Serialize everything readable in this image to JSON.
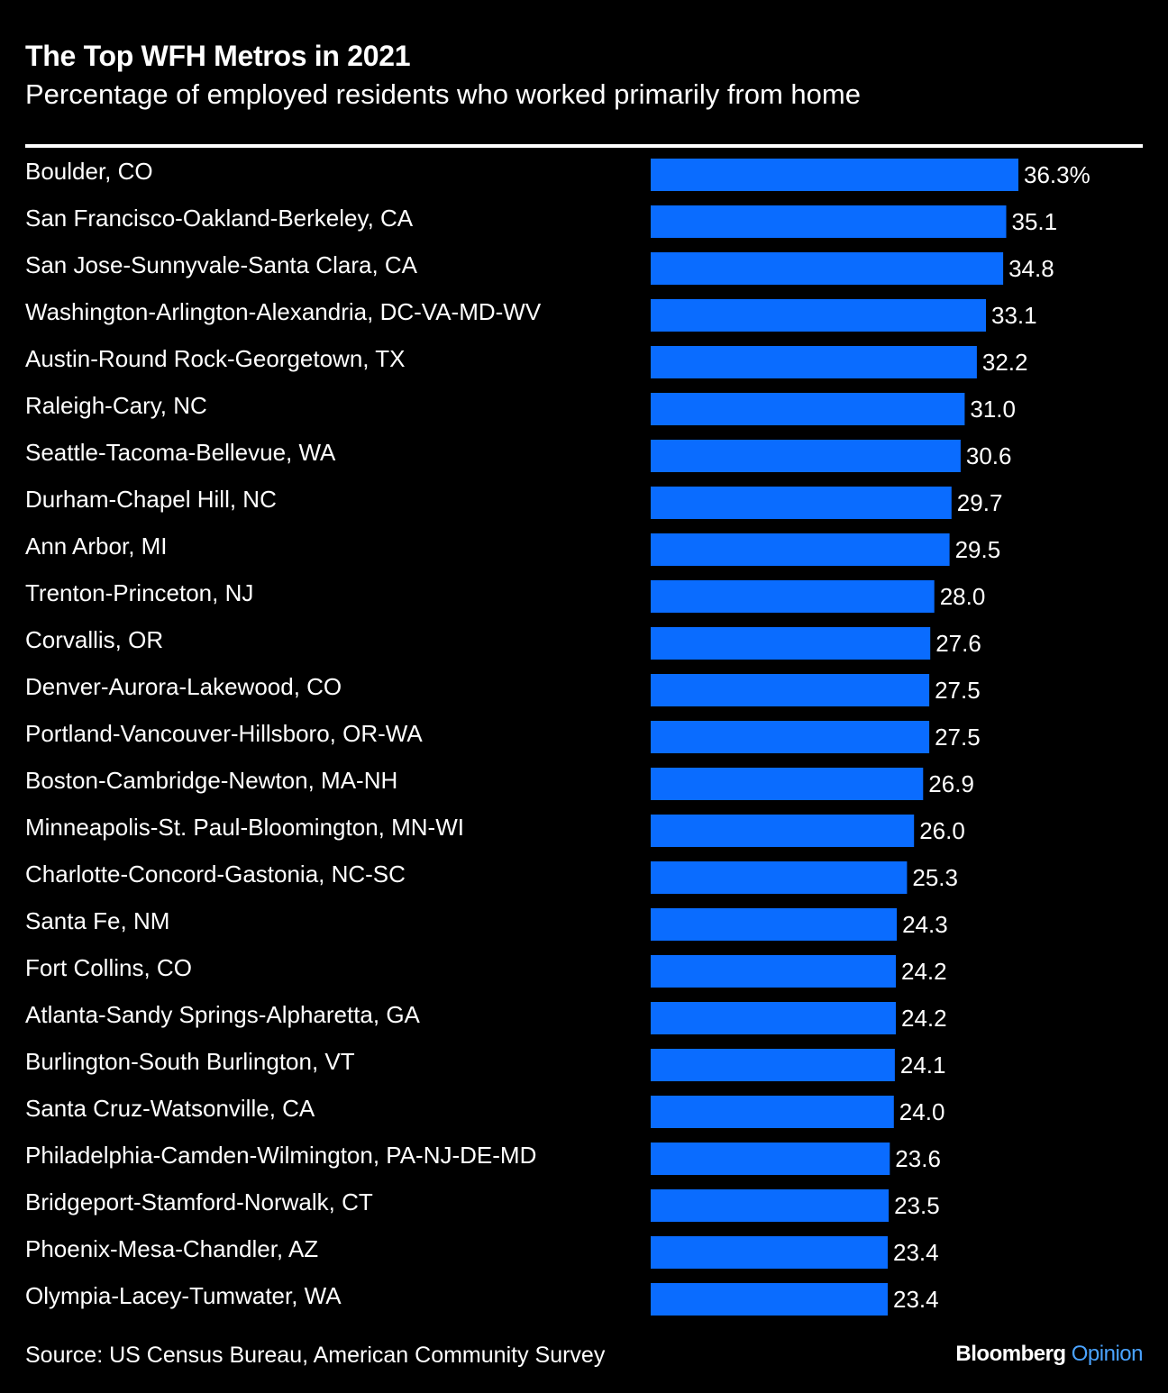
{
  "chart_data": {
    "type": "bar",
    "orientation": "horizontal",
    "title": "The Top WFH Metros in 2021",
    "subtitle": "Percentage of employed residents who worked primarily from home",
    "categories": [
      "Boulder, CO",
      "San Francisco-Oakland-Berkeley, CA",
      "San Jose-Sunnyvale-Santa Clara, CA",
      "Washington-Arlington-Alexandria, DC-VA-MD-WV",
      "Austin-Round Rock-Georgetown, TX",
      "Raleigh-Cary, NC",
      "Seattle-Tacoma-Bellevue, WA",
      "Durham-Chapel Hill, NC",
      "Ann Arbor, MI",
      "Trenton-Princeton, NJ",
      "Corvallis, OR",
      "Denver-Aurora-Lakewood, CO",
      "Portland-Vancouver-Hillsboro, OR-WA",
      "Boston-Cambridge-Newton, MA-NH",
      "Minneapolis-St. Paul-Bloomington, MN-WI",
      "Charlotte-Concord-Gastonia, NC-SC",
      "Santa Fe, NM",
      "Fort Collins, CO",
      "Atlanta-Sandy Springs-Alpharetta, GA",
      "Burlington-South Burlington, VT",
      "Santa Cruz-Watsonville, CA",
      "Philadelphia-Camden-Wilmington, PA-NJ-DE-MD",
      "Bridgeport-Stamford-Norwalk, CT",
      "Phoenix-Mesa-Chandler, AZ",
      "Olympia-Lacey-Tumwater, WA"
    ],
    "values": [
      36.3,
      35.1,
      34.8,
      33.1,
      32.2,
      31.0,
      30.6,
      29.7,
      29.5,
      28.0,
      27.6,
      27.5,
      27.5,
      26.9,
      26.0,
      25.3,
      24.3,
      24.2,
      24.2,
      24.1,
      24.0,
      23.6,
      23.5,
      23.4,
      23.4
    ],
    "value_labels": [
      "36.3%",
      "35.1",
      "34.8",
      "33.1",
      "32.2",
      "31.0",
      "30.6",
      "29.7",
      "29.5",
      "28.0",
      "27.6",
      "27.5",
      "27.5",
      "26.9",
      "26.0",
      "25.3",
      "24.3",
      "24.2",
      "24.2",
      "24.1",
      "24.0",
      "23.6",
      "23.5",
      "23.4",
      "23.4"
    ],
    "xlim": [
      0,
      36.3
    ],
    "grid": false,
    "bar_color": "#0a6cff"
  },
  "footer": {
    "source": "Source: US Census Bureau, American Community Survey",
    "brand_name": "Bloomberg",
    "brand_suffix": "Opinion"
  },
  "colors": {
    "background": "#000000",
    "text": "#ffffff",
    "bar": "#0a6cff",
    "brand_accent": "#4aa3ff"
  }
}
